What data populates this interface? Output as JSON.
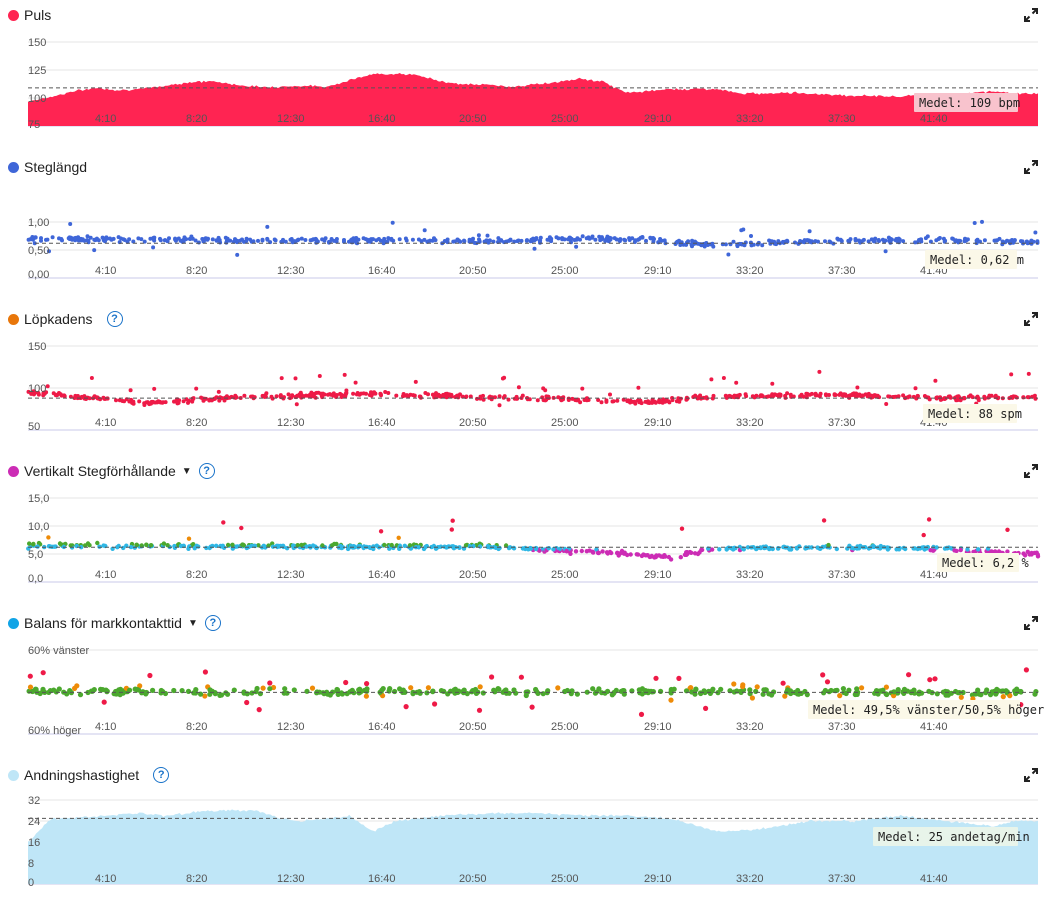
{
  "x_ticks": [
    "4:10",
    "8:20",
    "12:30",
    "16:40",
    "20:50",
    "25:00",
    "29:10",
    "33:20",
    "37:30",
    "41:40"
  ],
  "colors": {
    "puls": "#ff2452",
    "steglangd": "#3f66d8",
    "lopkadens_dot": "#e8760a",
    "lopkadens_data": "#ee1a47",
    "vertikal_dot": "#cc2cb5",
    "balans_dot": "#11a4e6",
    "andning": "#bfe6f7",
    "gray": "#9e9e9e",
    "green": "#4ba82e",
    "orange": "#ee8b08",
    "red": "#ee1a47",
    "cyan": "#2fb7e5",
    "purple": "#cc2cb5",
    "pink": "#f4a6b8"
  },
  "chart_data": [
    {
      "id": "puls",
      "type": "area",
      "title": "Puls",
      "ylim": [
        75,
        150
      ],
      "y_ticks": [
        "150",
        "125",
        "100",
        "75"
      ],
      "mean_value": 109,
      "mean_label": "Medel: 109 bpm",
      "series_profile": [
        [
          0,
          97
        ],
        [
          1,
          101
        ],
        [
          2,
          106
        ],
        [
          3,
          109
        ],
        [
          4,
          107
        ],
        [
          5,
          108
        ],
        [
          6,
          111
        ],
        [
          7,
          114
        ],
        [
          8,
          115
        ],
        [
          9,
          112
        ],
        [
          10,
          110
        ],
        [
          11,
          110
        ],
        [
          12,
          111
        ],
        [
          13,
          110
        ],
        [
          14,
          116
        ],
        [
          15,
          121
        ],
        [
          16,
          122
        ],
        [
          17,
          120
        ],
        [
          18,
          115
        ],
        [
          19,
          112
        ],
        [
          20,
          112
        ],
        [
          21,
          110
        ],
        [
          22,
          112
        ],
        [
          23,
          114
        ],
        [
          24,
          117
        ],
        [
          25,
          115
        ],
        [
          26,
          105
        ],
        [
          27,
          106
        ],
        [
          28,
          108
        ],
        [
          29,
          108
        ],
        [
          30,
          108
        ],
        [
          31,
          104
        ],
        [
          32,
          104
        ],
        [
          33,
          105
        ],
        [
          34,
          104
        ],
        [
          35,
          103
        ],
        [
          36,
          102
        ],
        [
          37,
          102
        ],
        [
          38,
          101
        ],
        [
          39,
          104
        ],
        [
          40,
          101
        ],
        [
          41,
          104
        ],
        [
          42,
          106
        ],
        [
          43,
          104
        ]
      ]
    },
    {
      "id": "steglangd",
      "type": "scatter",
      "title": "Steglängd",
      "ylim": [
        0,
        1.5
      ],
      "y_ticks": [
        "1,00",
        "0,50",
        "0,00"
      ],
      "y_tick_values": [
        1.0,
        0.5,
        0.0
      ],
      "mean_value": 0.62,
      "mean_label": "Medel: 0,62 m",
      "series_profile": [
        [
          0,
          0.7
        ],
        [
          10,
          0.68
        ],
        [
          20,
          0.66
        ],
        [
          25,
          0.7
        ],
        [
          27,
          0.68
        ],
        [
          30,
          0.58
        ],
        [
          34,
          0.66
        ],
        [
          40,
          0.68
        ],
        [
          43,
          0.64
        ]
      ]
    },
    {
      "id": "lopkadens",
      "type": "scatter",
      "title": "Löpkadens",
      "ylim": [
        50,
        150
      ],
      "y_ticks": [
        "150",
        "100",
        "50"
      ],
      "y_tick_values": [
        150,
        100,
        50
      ],
      "mean_value": 88,
      "mean_label": "Medel: 88 spm",
      "series_profile": [
        [
          0,
          95
        ],
        [
          3,
          88
        ],
        [
          5,
          82
        ],
        [
          10,
          90
        ],
        [
          15,
          93
        ],
        [
          20,
          89
        ],
        [
          25,
          85
        ],
        [
          27,
          83
        ],
        [
          30,
          90
        ],
        [
          35,
          92
        ],
        [
          40,
          88
        ],
        [
          43,
          89
        ]
      ]
    },
    {
      "id": "vertikal",
      "type": "scatter",
      "title": "Vertikalt Stegförhållande",
      "ylim": [
        0,
        15
      ],
      "y_ticks": [
        "15,0",
        "10,0",
        "5,0",
        "0,0"
      ],
      "y_tick_values": [
        15,
        10,
        5,
        0
      ],
      "mean_value": 6.2,
      "mean_label": "Medel: 6,2 %",
      "series_profile": [
        [
          0,
          6.5
        ],
        [
          10,
          6.4
        ],
        [
          20,
          6.3
        ],
        [
          25,
          5.3
        ],
        [
          28,
          4.5
        ],
        [
          30,
          6.0
        ],
        [
          35,
          6.2
        ],
        [
          40,
          6.0
        ],
        [
          43,
          5.0
        ]
      ]
    },
    {
      "id": "balans",
      "type": "scatter",
      "title": "Balans för markkontakttid",
      "ylim": [
        -60,
        60
      ],
      "y_ticks": [
        "60% vänster",
        "60% höger"
      ],
      "mean_value": -0.5,
      "mean_label": "Medel: 49,5% vänster/50,5% höger",
      "series_profile": [
        [
          0,
          2
        ],
        [
          10,
          0
        ],
        [
          20,
          1
        ],
        [
          25,
          0
        ],
        [
          30,
          2
        ],
        [
          35,
          0
        ],
        [
          40,
          -1
        ],
        [
          43,
          0
        ]
      ]
    },
    {
      "id": "andning",
      "type": "area",
      "title": "Andningshastighet",
      "ylim": [
        0,
        32
      ],
      "y_ticks": [
        "32",
        "24",
        "16",
        "8",
        "0"
      ],
      "y_tick_values": [
        32,
        24,
        16,
        8,
        0
      ],
      "mean_value": 25,
      "mean_label": "Medel: 25 andetag/min",
      "series_profile": [
        [
          0,
          16
        ],
        [
          1,
          25
        ],
        [
          2,
          25
        ],
        [
          3,
          26
        ],
        [
          5,
          27
        ],
        [
          6,
          26
        ],
        [
          8,
          28
        ],
        [
          10,
          28
        ],
        [
          11,
          25
        ],
        [
          12,
          24
        ],
        [
          14,
          26
        ],
        [
          15,
          20
        ],
        [
          16,
          24
        ],
        [
          18,
          26
        ],
        [
          20,
          27
        ],
        [
          22,
          27
        ],
        [
          24,
          26
        ],
        [
          26,
          26
        ],
        [
          28,
          25
        ],
        [
          30,
          20
        ],
        [
          32,
          21
        ],
        [
          34,
          24
        ],
        [
          36,
          24
        ],
        [
          38,
          26
        ],
        [
          40,
          24
        ],
        [
          42,
          22
        ],
        [
          43,
          24
        ]
      ]
    }
  ]
}
